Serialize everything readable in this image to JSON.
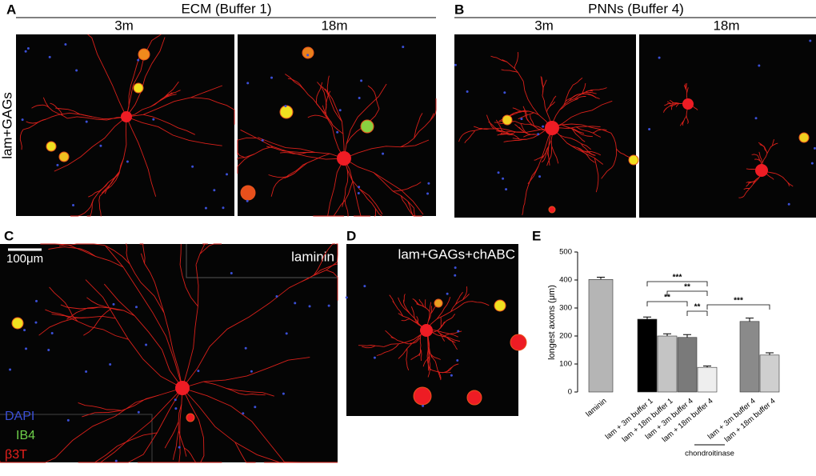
{
  "panels": {
    "A": {
      "label": "A",
      "title": "ECM (Buffer 1)",
      "columns": [
        "3m",
        "18m"
      ],
      "row_label": "lam+GAGs"
    },
    "B": {
      "label": "B",
      "title": "PNNs (Buffer 4)",
      "columns": [
        "3m",
        "18m"
      ]
    },
    "C": {
      "label": "C",
      "scale_bar": "100μm",
      "caption": "laminin",
      "stains": [
        "DAPI",
        "IB4",
        "β3T"
      ],
      "stain_colors": [
        "#3b4fd6",
        "#6ed04a",
        "#e8201c"
      ]
    },
    "D": {
      "label": "D",
      "caption": "lam+GAGs+chABC"
    },
    "E": {
      "label": "E"
    }
  },
  "chart_data": {
    "type": "bar",
    "ylabel": "longest axons (μm)",
    "categories": [
      "laminin",
      "lam + 3m buffer 1",
      "lam + 18m buffer 1",
      "lam + 3m buffer 4",
      "lam + 18m buffer 4",
      "lam + 3m buffer 4",
      "lam + 18m buffer 4"
    ],
    "values": [
      402,
      260,
      200,
      195,
      88,
      252,
      132
    ],
    "errors": [
      8,
      8,
      8,
      10,
      5,
      12,
      8
    ],
    "colors": [
      "#b5b5b5",
      "#000000",
      "#c4c4c4",
      "#7a7a7a",
      "#eeeeee",
      "#8a8a8a",
      "#cfcfcf"
    ],
    "ylim": [
      0,
      500
    ],
    "yticks": [
      0,
      100,
      200,
      300,
      400,
      500
    ],
    "annotations": [
      "***",
      "**",
      "**",
      "**",
      "***"
    ],
    "group_label": "chondroitinase"
  }
}
